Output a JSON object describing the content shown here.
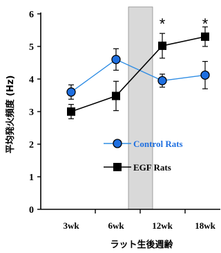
{
  "chart_data": {
    "type": "line",
    "xlabel": "ラット生後週齢",
    "ylabel": "平均発火頻度 (Hz)",
    "categories": [
      "3wk",
      "6wk",
      "12wk",
      "18wk"
    ],
    "ylim": [
      0,
      6
    ],
    "yticks": [
      "0",
      "1",
      "2",
      "3",
      "4",
      "5",
      "6"
    ],
    "shaded_region": {
      "from_category": "6wk",
      "to_category": "12wk",
      "color": "#d9d9d9"
    },
    "series": [
      {
        "name": "Control Rats",
        "marker": "circle",
        "line_color": "#2f8de4",
        "marker_fill": "#1e6fe0",
        "values": [
          3.6,
          4.6,
          3.95,
          4.12
        ],
        "errors": [
          0.22,
          0.33,
          0.2,
          0.42
        ]
      },
      {
        "name": "EGF Rats",
        "marker": "square",
        "line_color": "#000000",
        "marker_fill": "#000000",
        "values": [
          3.0,
          3.48,
          5.02,
          5.3
        ],
        "errors": [
          0.22,
          0.45,
          0.38,
          0.3
        ]
      }
    ],
    "annotations": [
      {
        "category": "12wk",
        "text": "*"
      },
      {
        "category": "18wk",
        "text": "*"
      }
    ],
    "legend": {
      "placement": "right-middle"
    }
  }
}
